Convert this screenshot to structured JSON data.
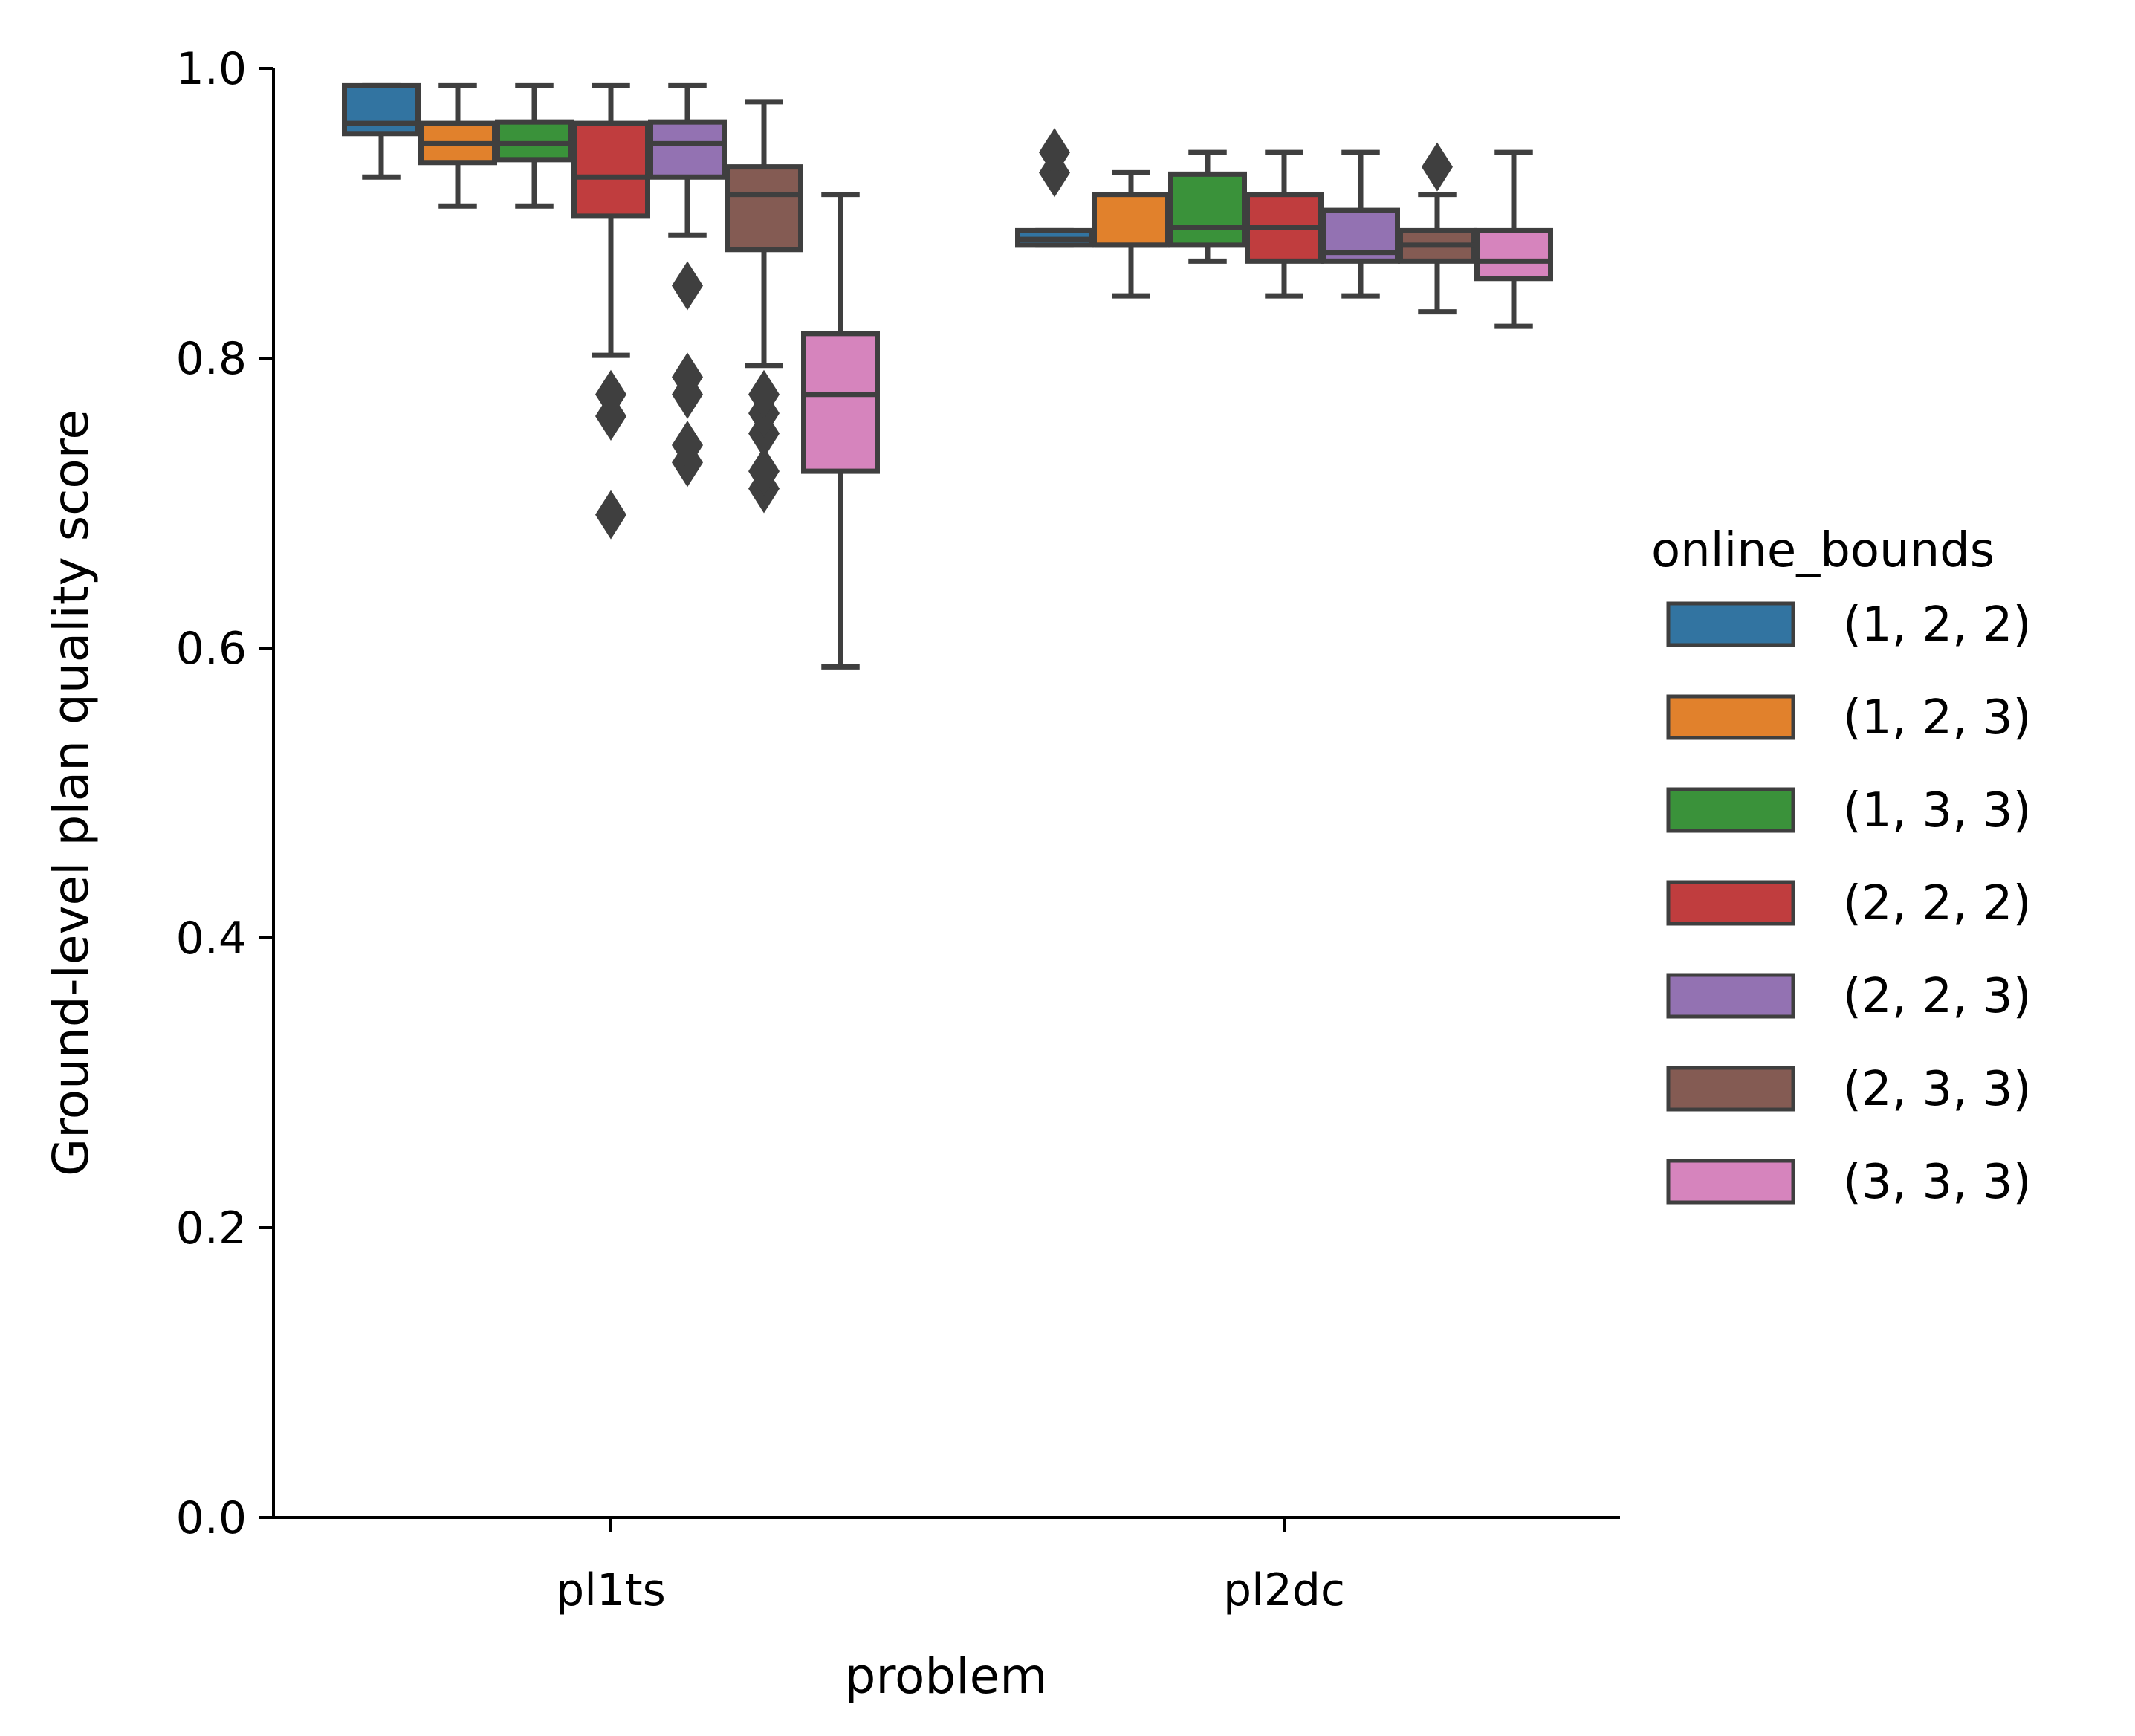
{
  "chart_data": {
    "type": "box",
    "xlabel": "problem",
    "ylabel": "Ground-level plan quality score",
    "ylim": [
      0,
      1
    ],
    "yticks": [
      {
        "value": 0.0,
        "label": "0.0"
      },
      {
        "value": 0.2,
        "label": "0.2"
      },
      {
        "value": 0.4,
        "label": "0.4"
      },
      {
        "value": 0.6,
        "label": "0.6"
      },
      {
        "value": 0.8,
        "label": "0.8"
      },
      {
        "value": 1.0,
        "label": "1.0"
      }
    ],
    "categories": [
      "pl1ts",
      "pl2dc"
    ],
    "legend": {
      "title": "online_bounds",
      "placement": "right"
    },
    "grid": false,
    "series": [
      {
        "name": "(1, 2, 2)",
        "color": "#3274a1",
        "boxes": [
          {
            "category": "pl1ts",
            "whisker_low": 0.925,
            "q1": 0.955,
            "median": 0.962,
            "q3": 0.988,
            "whisker_high": 0.988,
            "outliers": []
          },
          {
            "category": "pl2dc",
            "whisker_low": 0.878,
            "q1": 0.878,
            "median": 0.882,
            "q3": 0.888,
            "whisker_high": 0.888,
            "outliers": [
              0.928,
              0.942
            ]
          }
        ]
      },
      {
        "name": "(1, 2, 3)",
        "color": "#e1812c",
        "boxes": [
          {
            "category": "pl1ts",
            "whisker_low": 0.905,
            "q1": 0.935,
            "median": 0.948,
            "q3": 0.962,
            "whisker_high": 0.988,
            "outliers": []
          },
          {
            "category": "pl2dc",
            "whisker_low": 0.843,
            "q1": 0.878,
            "median": 0.878,
            "q3": 0.913,
            "whisker_high": 0.928,
            "outliers": []
          }
        ]
      },
      {
        "name": "(1, 3, 3)",
        "color": "#3a923a",
        "boxes": [
          {
            "category": "pl1ts",
            "whisker_low": 0.905,
            "q1": 0.937,
            "median": 0.948,
            "q3": 0.963,
            "whisker_high": 0.988,
            "outliers": []
          },
          {
            "category": "pl2dc",
            "whisker_low": 0.867,
            "q1": 0.878,
            "median": 0.89,
            "q3": 0.927,
            "whisker_high": 0.942,
            "outliers": []
          }
        ]
      },
      {
        "name": "(2, 2, 2)",
        "color": "#c03d3e",
        "boxes": [
          {
            "category": "pl1ts",
            "whisker_low": 0.802,
            "q1": 0.898,
            "median": 0.925,
            "q3": 0.962,
            "whisker_high": 0.988,
            "outliers": [
              0.692,
              0.76,
              0.775
            ]
          },
          {
            "category": "pl2dc",
            "whisker_low": 0.843,
            "q1": 0.867,
            "median": 0.89,
            "q3": 0.913,
            "whisker_high": 0.942,
            "outliers": []
          }
        ]
      },
      {
        "name": "(2, 2, 3)",
        "color": "#9372b2",
        "boxes": [
          {
            "category": "pl1ts",
            "whisker_low": 0.885,
            "q1": 0.925,
            "median": 0.948,
            "q3": 0.963,
            "whisker_high": 0.988,
            "outliers": [
              0.728,
              0.74,
              0.775,
              0.787,
              0.85
            ]
          },
          {
            "category": "pl2dc",
            "whisker_low": 0.843,
            "q1": 0.867,
            "median": 0.873,
            "q3": 0.902,
            "whisker_high": 0.942,
            "outliers": []
          }
        ]
      },
      {
        "name": "(2, 3, 3)",
        "color": "#845b53",
        "boxes": [
          {
            "category": "pl1ts",
            "whisker_low": 0.795,
            "q1": 0.875,
            "median": 0.913,
            "q3": 0.932,
            "whisker_high": 0.977,
            "outliers": [
              0.71,
              0.722,
              0.748,
              0.762,
              0.775
            ]
          },
          {
            "category": "pl2dc",
            "whisker_low": 0.832,
            "q1": 0.867,
            "median": 0.878,
            "q3": 0.888,
            "whisker_high": 0.913,
            "outliers": [
              0.932
            ]
          }
        ]
      },
      {
        "name": "(3, 3, 3)",
        "color": "#d684bd",
        "boxes": [
          {
            "category": "pl1ts",
            "whisker_low": 0.587,
            "q1": 0.722,
            "median": 0.775,
            "q3": 0.817,
            "whisker_high": 0.913,
            "outliers": []
          },
          {
            "category": "pl2dc",
            "whisker_low": 0.822,
            "q1": 0.855,
            "median": 0.867,
            "q3": 0.888,
            "whisker_high": 0.942,
            "outliers": []
          }
        ]
      }
    ]
  }
}
